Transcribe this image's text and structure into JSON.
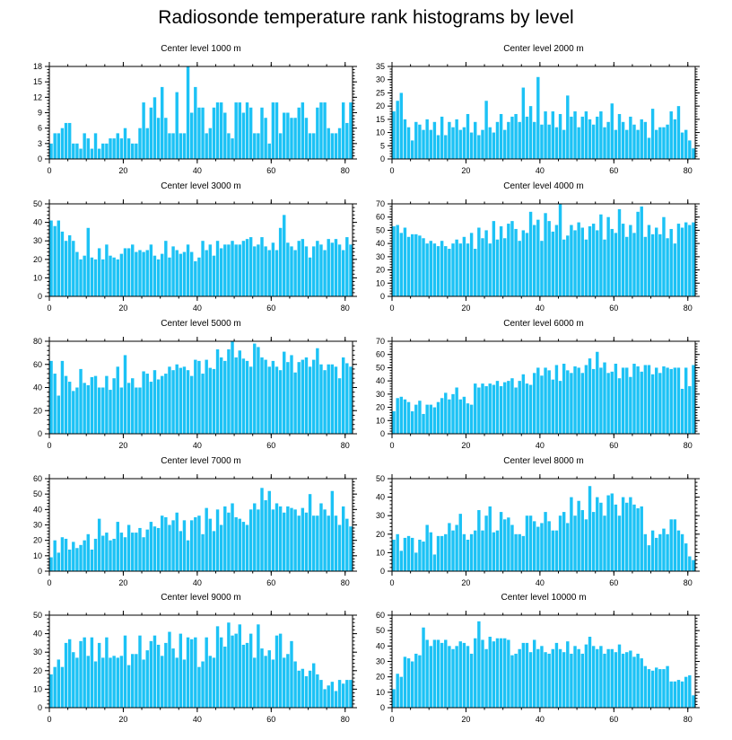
{
  "title": "Radiosonde temperature rank histograms by level",
  "chart_data": [
    {
      "type": "bar",
      "title": "Center level 1000 m",
      "xlim": [
        0,
        82
      ],
      "xticks": [
        0,
        20,
        40,
        60,
        80
      ],
      "ylim": [
        0,
        18
      ],
      "yticks": [
        0,
        3,
        6,
        9,
        12,
        15,
        18
      ],
      "color": "#1CC2F5",
      "values": [
        3,
        5,
        5,
        6,
        7,
        7,
        3,
        3,
        2,
        5,
        4,
        2,
        5,
        2,
        3,
        3,
        4,
        4,
        5,
        4,
        6,
        4,
        3,
        3,
        6,
        11,
        6,
        10,
        12,
        8,
        14,
        8,
        5,
        5,
        13,
        5,
        5,
        18,
        9,
        14,
        10,
        10,
        5,
        6,
        10,
        11,
        11,
        9,
        5,
        4,
        11,
        11,
        9,
        11,
        10,
        5,
        5,
        10,
        8,
        3,
        11,
        11,
        5,
        9,
        9,
        8,
        8,
        10,
        11,
        8,
        5,
        5,
        10,
        11,
        11,
        6,
        5,
        5,
        6,
        11,
        7,
        11
      ]
    },
    {
      "type": "bar",
      "title": "Center level 2000 m",
      "xlim": [
        0,
        82
      ],
      "xticks": [
        0,
        20,
        40,
        60,
        80
      ],
      "ylim": [
        0,
        35
      ],
      "yticks": [
        0,
        5,
        10,
        15,
        20,
        25,
        30,
        35
      ],
      "color": "#1CC2F5",
      "values": [
        18,
        22,
        25,
        15,
        12,
        7,
        14,
        13,
        11,
        15,
        11,
        14,
        9,
        16,
        9,
        14,
        12,
        15,
        11,
        12,
        17,
        10,
        14,
        9,
        11,
        22,
        12,
        10,
        14,
        17,
        11,
        14,
        16,
        17,
        14,
        27,
        16,
        20,
        14,
        31,
        13,
        18,
        13,
        18,
        12,
        17,
        11,
        24,
        16,
        18,
        12,
        16,
        18,
        15,
        13,
        16,
        18,
        12,
        14,
        21,
        11,
        17,
        14,
        11,
        16,
        13,
        11,
        15,
        14,
        8,
        19,
        11,
        12,
        12,
        13,
        18,
        15,
        20,
        10,
        11,
        7,
        4
      ]
    },
    {
      "type": "bar",
      "title": "Center level 3000 m",
      "xlim": [
        0,
        82
      ],
      "xticks": [
        0,
        20,
        40,
        60,
        80
      ],
      "ylim": [
        0,
        50
      ],
      "yticks": [
        0,
        10,
        20,
        30,
        40,
        50
      ],
      "color": "#1CC2F5",
      "values": [
        41,
        38,
        41,
        35,
        30,
        33,
        30,
        24,
        20,
        22,
        37,
        21,
        20,
        26,
        20,
        28,
        22,
        21,
        20,
        23,
        26,
        26,
        28,
        24,
        25,
        24,
        25,
        28,
        22,
        20,
        23,
        30,
        21,
        27,
        25,
        23,
        24,
        28,
        24,
        19,
        21,
        30,
        25,
        28,
        22,
        30,
        26,
        28,
        28,
        30,
        28,
        28,
        30,
        31,
        32,
        27,
        28,
        32,
        27,
        25,
        29,
        25,
        37,
        44,
        29,
        27,
        25,
        30,
        31,
        27,
        21,
        27,
        30,
        28,
        25,
        31,
        29,
        31,
        28,
        25,
        32,
        28
      ]
    },
    {
      "type": "bar",
      "title": "Center level 4000 m",
      "xlim": [
        0,
        82
      ],
      "xticks": [
        0,
        20,
        40,
        60,
        80
      ],
      "ylim": [
        0,
        70
      ],
      "yticks": [
        0,
        10,
        20,
        30,
        40,
        50,
        60,
        70
      ],
      "color": "#1CC2F5",
      "values": [
        53,
        54,
        48,
        52,
        45,
        47,
        47,
        46,
        44,
        40,
        42,
        40,
        38,
        42,
        38,
        36,
        40,
        43,
        40,
        45,
        40,
        48,
        36,
        52,
        44,
        50,
        40,
        57,
        43,
        53,
        44,
        55,
        57,
        51,
        42,
        50,
        48,
        64,
        54,
        58,
        42,
        63,
        57,
        49,
        54,
        70,
        43,
        46,
        54,
        50,
        56,
        52,
        43,
        53,
        55,
        50,
        62,
        43,
        60,
        51,
        48,
        66,
        55,
        45,
        54,
        48,
        64,
        68,
        45,
        54,
        47,
        52,
        47,
        60,
        44,
        51,
        40,
        55,
        52,
        56,
        54,
        56
      ]
    },
    {
      "type": "bar",
      "title": "Center level 5000 m",
      "xlim": [
        0,
        82
      ],
      "xticks": [
        0,
        20,
        40,
        60,
        80
      ],
      "ylim": [
        0,
        80
      ],
      "yticks": [
        0,
        20,
        40,
        60,
        80
      ],
      "color": "#1CC2F5",
      "values": [
        63,
        52,
        33,
        63,
        50,
        45,
        37,
        40,
        56,
        44,
        42,
        49,
        50,
        40,
        40,
        50,
        38,
        48,
        58,
        40,
        68,
        44,
        48,
        40,
        40,
        54,
        52,
        45,
        55,
        47,
        50,
        52,
        58,
        55,
        60,
        57,
        58,
        55,
        50,
        64,
        63,
        52,
        64,
        57,
        56,
        73,
        66,
        63,
        73,
        80,
        66,
        72,
        65,
        63,
        58,
        78,
        75,
        66,
        64,
        58,
        63,
        58,
        55,
        71,
        62,
        68,
        53,
        62,
        64,
        66,
        58,
        64,
        74,
        60,
        55,
        60,
        60,
        58,
        48,
        66,
        61,
        58
      ]
    },
    {
      "type": "bar",
      "title": "Center level 6000 m",
      "xlim": [
        0,
        82
      ],
      "xticks": [
        0,
        20,
        40,
        60,
        80
      ],
      "ylim": [
        0,
        70
      ],
      "yticks": [
        0,
        10,
        20,
        30,
        40,
        50,
        60,
        70
      ],
      "color": "#1CC2F5",
      "values": [
        17,
        27,
        28,
        26,
        24,
        17,
        22,
        25,
        15,
        22,
        22,
        20,
        24,
        27,
        31,
        26,
        30,
        35,
        26,
        28,
        23,
        22,
        38,
        35,
        38,
        36,
        38,
        37,
        40,
        36,
        39,
        40,
        42,
        35,
        40,
        45,
        38,
        37,
        46,
        50,
        44,
        50,
        48,
        41,
        52,
        40,
        53,
        48,
        46,
        51,
        50,
        46,
        52,
        57,
        49,
        62,
        50,
        54,
        46,
        47,
        53,
        42,
        50,
        50,
        43,
        53,
        51,
        47,
        52,
        52,
        45,
        50,
        46,
        51,
        50,
        49,
        50,
        50,
        34,
        50,
        36,
        52
      ]
    },
    {
      "type": "bar",
      "title": "Center level 7000 m",
      "xlim": [
        0,
        82
      ],
      "xticks": [
        0,
        20,
        40,
        60,
        80
      ],
      "ylim": [
        0,
        60
      ],
      "yticks": [
        0,
        10,
        20,
        30,
        40,
        50,
        60
      ],
      "color": "#1CC2F5",
      "values": [
        9,
        20,
        12,
        22,
        21,
        14,
        19,
        15,
        17,
        20,
        24,
        14,
        21,
        34,
        23,
        25,
        20,
        21,
        32,
        25,
        22,
        30,
        25,
        25,
        28,
        22,
        27,
        32,
        29,
        28,
        36,
        35,
        30,
        33,
        38,
        26,
        33,
        20,
        33,
        35,
        36,
        24,
        41,
        34,
        26,
        40,
        30,
        42,
        38,
        44,
        35,
        34,
        32,
        30,
        40,
        44,
        40,
        54,
        46,
        52,
        40,
        44,
        42,
        38,
        42,
        41,
        40,
        36,
        41,
        38,
        50,
        36,
        36,
        44,
        40,
        36,
        52,
        36,
        30,
        42,
        34,
        29
      ]
    },
    {
      "type": "bar",
      "title": "Center level 8000 m",
      "xlim": [
        0,
        82
      ],
      "xticks": [
        0,
        20,
        40,
        60,
        80
      ],
      "ylim": [
        0,
        50
      ],
      "yticks": [
        0,
        10,
        20,
        30,
        40,
        50
      ],
      "color": "#1CC2F5",
      "values": [
        17,
        20,
        11,
        18,
        19,
        18,
        10,
        17,
        16,
        25,
        21,
        9,
        19,
        19,
        20,
        26,
        22,
        25,
        31,
        20,
        17,
        20,
        22,
        33,
        22,
        30,
        35,
        21,
        22,
        32,
        28,
        29,
        25,
        20,
        20,
        19,
        30,
        30,
        27,
        24,
        26,
        32,
        27,
        22,
        22,
        30,
        32,
        26,
        40,
        30,
        38,
        33,
        28,
        46,
        32,
        40,
        37,
        30,
        41,
        42,
        36,
        30,
        40,
        37,
        40,
        36,
        34,
        35,
        20,
        14,
        22,
        18,
        20,
        23,
        20,
        28,
        28,
        22,
        20,
        15,
        8,
        6
      ]
    },
    {
      "type": "bar",
      "title": "Center level 9000 m",
      "xlim": [
        0,
        82
      ],
      "xticks": [
        0,
        20,
        40,
        60,
        80
      ],
      "ylim": [
        0,
        50
      ],
      "yticks": [
        0,
        10,
        20,
        30,
        40,
        50
      ],
      "color": "#1CC2F5",
      "values": [
        18,
        22,
        26,
        22,
        35,
        37,
        30,
        27,
        36,
        38,
        28,
        38,
        25,
        35,
        27,
        38,
        27,
        28,
        27,
        28,
        39,
        23,
        29,
        29,
        39,
        26,
        31,
        36,
        39,
        34,
        28,
        35,
        41,
        32,
        27,
        40,
        26,
        38,
        37,
        38,
        22,
        25,
        38,
        28,
        27,
        44,
        38,
        33,
        46,
        39,
        40,
        45,
        34,
        35,
        40,
        27,
        45,
        32,
        28,
        31,
        26,
        39,
        40,
        27,
        29,
        36,
        25,
        20,
        21,
        17,
        20,
        24,
        18,
        15,
        10,
        12,
        14,
        9,
        15,
        13,
        15,
        15
      ]
    },
    {
      "type": "bar",
      "title": "Center level 10000 m",
      "xlim": [
        0,
        82
      ],
      "xticks": [
        0,
        20,
        40,
        60,
        80
      ],
      "ylim": [
        0,
        60
      ],
      "yticks": [
        0,
        10,
        20,
        30,
        40,
        50,
        60
      ],
      "color": "#1CC2F5",
      "values": [
        12,
        22,
        20,
        33,
        32,
        30,
        35,
        34,
        52,
        44,
        40,
        44,
        44,
        42,
        44,
        40,
        38,
        40,
        43,
        42,
        40,
        35,
        45,
        56,
        44,
        38,
        46,
        43,
        45,
        45,
        45,
        44,
        34,
        35,
        38,
        42,
        42,
        36,
        44,
        38,
        40,
        36,
        35,
        38,
        42,
        38,
        36,
        43,
        35,
        40,
        38,
        35,
        41,
        46,
        40,
        38,
        40,
        35,
        38,
        38,
        36,
        41,
        35,
        36,
        37,
        33,
        35,
        32,
        27,
        25,
        24,
        26,
        25,
        25,
        27,
        17,
        17,
        18,
        17,
        20,
        21,
        8
      ]
    }
  ]
}
